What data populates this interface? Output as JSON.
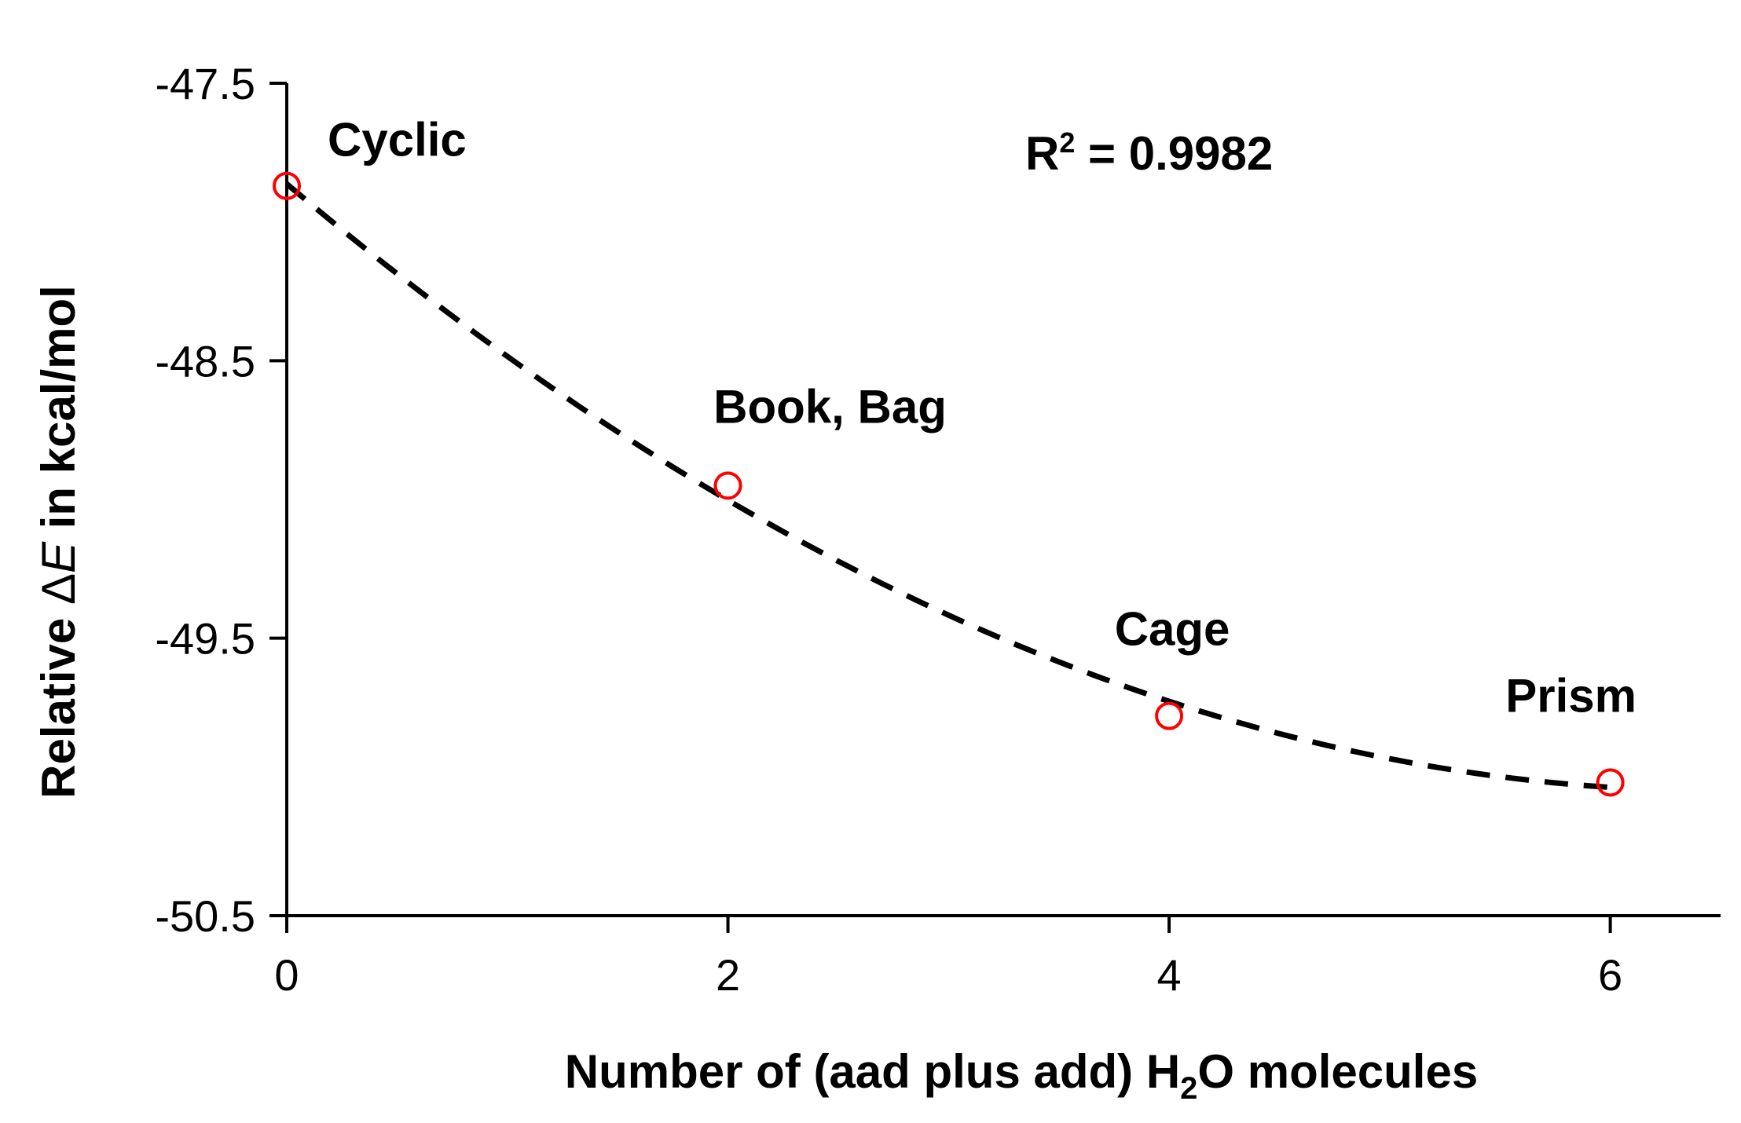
{
  "chart_data": {
    "type": "scatter",
    "xlabel": {
      "prefix": "Number of (aad plus add) H",
      "subscript": "2",
      "suffix": "O molecules"
    },
    "ylabel": {
      "prefix": "Relative ",
      "delta": "Δ",
      "italic": "E",
      "suffix": "  in kcal/mol"
    },
    "xlim": [
      0,
      6.5
    ],
    "ylim": [
      -50.5,
      -47.5
    ],
    "xticks": [
      0,
      2,
      4,
      6
    ],
    "xtick_labels": [
      "0",
      "2",
      "4",
      "6"
    ],
    "yticks": [
      -47.5,
      -48.5,
      -49.5,
      -50.5
    ],
    "ytick_labels": [
      "-47.5",
      "-48.5",
      "-49.5",
      "-50.5"
    ],
    "grid": false,
    "series": [
      {
        "marker": "open-circle",
        "color": "#ff0000",
        "x": [
          0,
          2,
          4,
          6
        ],
        "y": [
          -47.87,
          -48.95,
          -49.78,
          -50.02
        ],
        "labels": [
          "Cyclic",
          "Book, Bag",
          "Cage",
          "Prism"
        ]
      }
    ],
    "trendline": {
      "type": "polynomial-2",
      "style": "dashed",
      "color": "#000000",
      "x": [
        0,
        2,
        4,
        6
      ],
      "y": [
        -47.87,
        -48.98,
        -49.75,
        -50.03
      ]
    },
    "annotations": {
      "r2": {
        "base": "R",
        "superscript": "2",
        "rest": " = 0.9982"
      }
    }
  }
}
